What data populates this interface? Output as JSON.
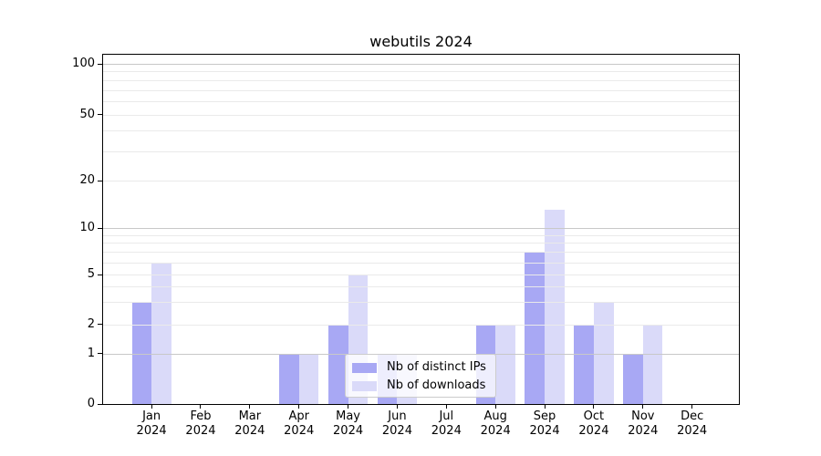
{
  "title": "webutils 2024",
  "year": "2024",
  "months": [
    "Jan",
    "Feb",
    "Mar",
    "Apr",
    "May",
    "Jun",
    "Jul",
    "Aug",
    "Sep",
    "Oct",
    "Nov",
    "Dec"
  ],
  "legend": {
    "items": [
      {
        "label": "Nb of distinct IPs",
        "color": "#a8a8f4"
      },
      {
        "label": "Nb of downloads",
        "color": "#dadaf9"
      }
    ]
  },
  "colors": {
    "series_ips": "#a8a8f4",
    "series_downloads": "#dadaf9",
    "grid_major": "#c8c8c8",
    "grid_minor": "#eaeaea",
    "axis": "#000000",
    "text": "#000000",
    "legend_border": "#cccccc",
    "background": "#ffffff"
  },
  "chart_data": {
    "type": "bar",
    "title": "webutils 2024",
    "categories": [
      "Jan 2024",
      "Feb 2024",
      "Mar 2024",
      "Apr 2024",
      "May 2024",
      "Jun 2024",
      "Jul 2024",
      "Aug 2024",
      "Sep 2024",
      "Oct 2024",
      "Nov 2024",
      "Dec 2024"
    ],
    "series": [
      {
        "name": "Nb of distinct IPs",
        "color": "#a8a8f4",
        "values": [
          3,
          0,
          0,
          1,
          2,
          1,
          0,
          2,
          7,
          2,
          1,
          0
        ]
      },
      {
        "name": "Nb of downloads",
        "color": "#dadaf9",
        "values": [
          6,
          0,
          0,
          1,
          5,
          1,
          0,
          2,
          13,
          3,
          2,
          0
        ]
      }
    ],
    "xlabel": "",
    "ylabel": "",
    "y_ticks": [
      0,
      1,
      2,
      5,
      10,
      20,
      50,
      100
    ],
    "y_minor_gridlines": [
      2,
      3,
      4,
      5,
      6,
      7,
      8,
      9,
      20,
      30,
      40,
      50,
      60,
      70,
      80,
      90
    ],
    "y_major_gridlines": [
      1,
      10,
      100
    ],
    "y_scale": "log-like with linear 0-1 segment",
    "ylim": [
      0,
      130
    ],
    "grid": true,
    "legend_position": "lower center"
  }
}
